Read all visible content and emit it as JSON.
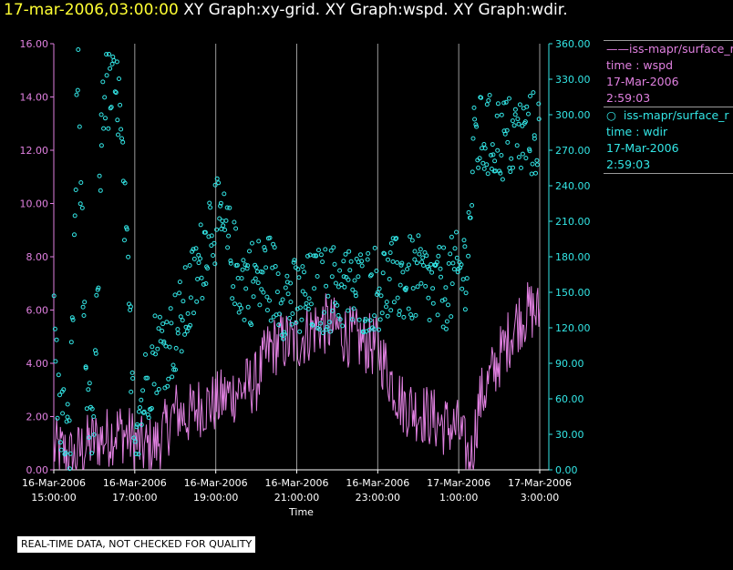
{
  "header": {
    "timestamp": "17-mar-2006,03:00:00",
    "titles": "XY Graph:xy-grid.  XY Graph:wspd.  XY Graph:wdir."
  },
  "legend": {
    "series1": {
      "name": "iss-mapr/surface_r",
      "line1": "time : wspd",
      "line2": "17-Mar-2006",
      "line3": "2:59:03"
    },
    "series2": {
      "name": "iss-mapr/surface_r",
      "line1": "time : wdir",
      "line2": "17-Mar-2006",
      "line3": "2:59:03"
    }
  },
  "quality_note": "REAL-TIME DATA, NOT CHECKED FOR QUALITY",
  "colors": {
    "wspd": "#e080e0",
    "wdir": "#33e6e6",
    "grid": "#9a9a9a",
    "axis": "#e080e0",
    "timestamp": "#ffff33"
  },
  "chart_data": {
    "type": "line",
    "xlabel": "Time",
    "x_start_hours": 0,
    "x_tick_hours": [
      0,
      2,
      4,
      6,
      8,
      10,
      12
    ],
    "x_tick_labels": [
      [
        "16-Mar-2006",
        "15:00:00"
      ],
      [
        "16-Mar-2006",
        "17:00:00"
      ],
      [
        "16-Mar-2006",
        "19:00:00"
      ],
      [
        "16-Mar-2006",
        "21:00:00"
      ],
      [
        "16-Mar-2006",
        "23:00:00"
      ],
      [
        "17-Mar-2006",
        "1:00:00"
      ],
      [
        "17-Mar-2006",
        "3:00:00"
      ]
    ],
    "xlim_hours": [
      0,
      12.1
    ],
    "left_axis": {
      "ylim": [
        0,
        16
      ],
      "ticks": [
        "0.00",
        "2.00",
        "4.00",
        "6.00",
        "8.00",
        "10.00",
        "12.00",
        "14.00",
        "16.00"
      ]
    },
    "right_axis": {
      "ylim": [
        0,
        360
      ],
      "ticks": [
        "0.00",
        "30.00",
        "60.00",
        "90.00",
        "120.00",
        "150.00",
        "180.00",
        "210.00",
        "240.00",
        "270.00",
        "300.00",
        "330.00",
        "360.00"
      ]
    },
    "series": [
      {
        "name": "wspd",
        "axis": "left",
        "style": "line",
        "knots_hours": [
          0,
          0.3,
          0.5,
          0.7,
          1.0,
          1.3,
          1.6,
          1.9,
          2.2,
          2.5,
          2.8,
          3.0,
          3.3,
          3.6,
          4.0,
          4.3,
          4.6,
          5.0,
          5.3,
          5.6,
          6.0,
          6.3,
          6.6,
          7.0,
          7.3,
          7.6,
          8.0,
          8.3,
          8.6,
          9.0,
          9.3,
          9.6,
          10.0,
          10.2,
          10.3,
          10.5,
          10.8,
          11.0,
          11.2,
          11.4,
          11.6,
          11.8,
          12.0
        ],
        "knots_values": [
          0.8,
          0.6,
          0.4,
          0.8,
          1.1,
          1.2,
          1.5,
          1.2,
          0.8,
          0.9,
          1.6,
          2.2,
          2.0,
          2.4,
          2.5,
          2.8,
          3.0,
          3.3,
          4.5,
          4.8,
          4.8,
          5.2,
          5.5,
          5.3,
          5.0,
          4.8,
          4.6,
          3.5,
          2.5,
          2.2,
          2.0,
          1.7,
          1.5,
          0.6,
          0.3,
          2.5,
          3.5,
          4.2,
          4.8,
          5.5,
          5.8,
          6.0,
          5.8
        ],
        "noise_amplitude": 1.2
      },
      {
        "name": "wdir",
        "axis": "right",
        "style": "markers",
        "knots_hours": [
          0,
          0.1,
          0.3,
          0.4,
          0.6,
          0.7,
          0.8,
          1.0,
          1.2,
          1.6,
          2.0,
          2.2,
          2.5,
          2.9,
          3.2,
          3.6,
          3.9,
          4.2,
          4.6,
          5.0,
          5.3,
          5.6,
          6.0,
          6.5,
          7.0,
          7.5,
          8.0,
          8.5,
          9.0,
          9.5,
          10.0,
          10.2,
          10.4,
          11.0,
          11.5,
          12.0
        ],
        "knots_values": [
          140,
          60,
          30,
          20,
          345,
          200,
          40,
          35,
          320,
          315,
          40,
          60,
          100,
          110,
          130,
          170,
          215,
          200,
          160,
          160,
          165,
          150,
          140,
          150,
          155,
          150,
          155,
          160,
          160,
          150,
          165,
          175,
          280,
          280,
          280,
          285
        ],
        "noise_amplitude": 38
      }
    ]
  }
}
